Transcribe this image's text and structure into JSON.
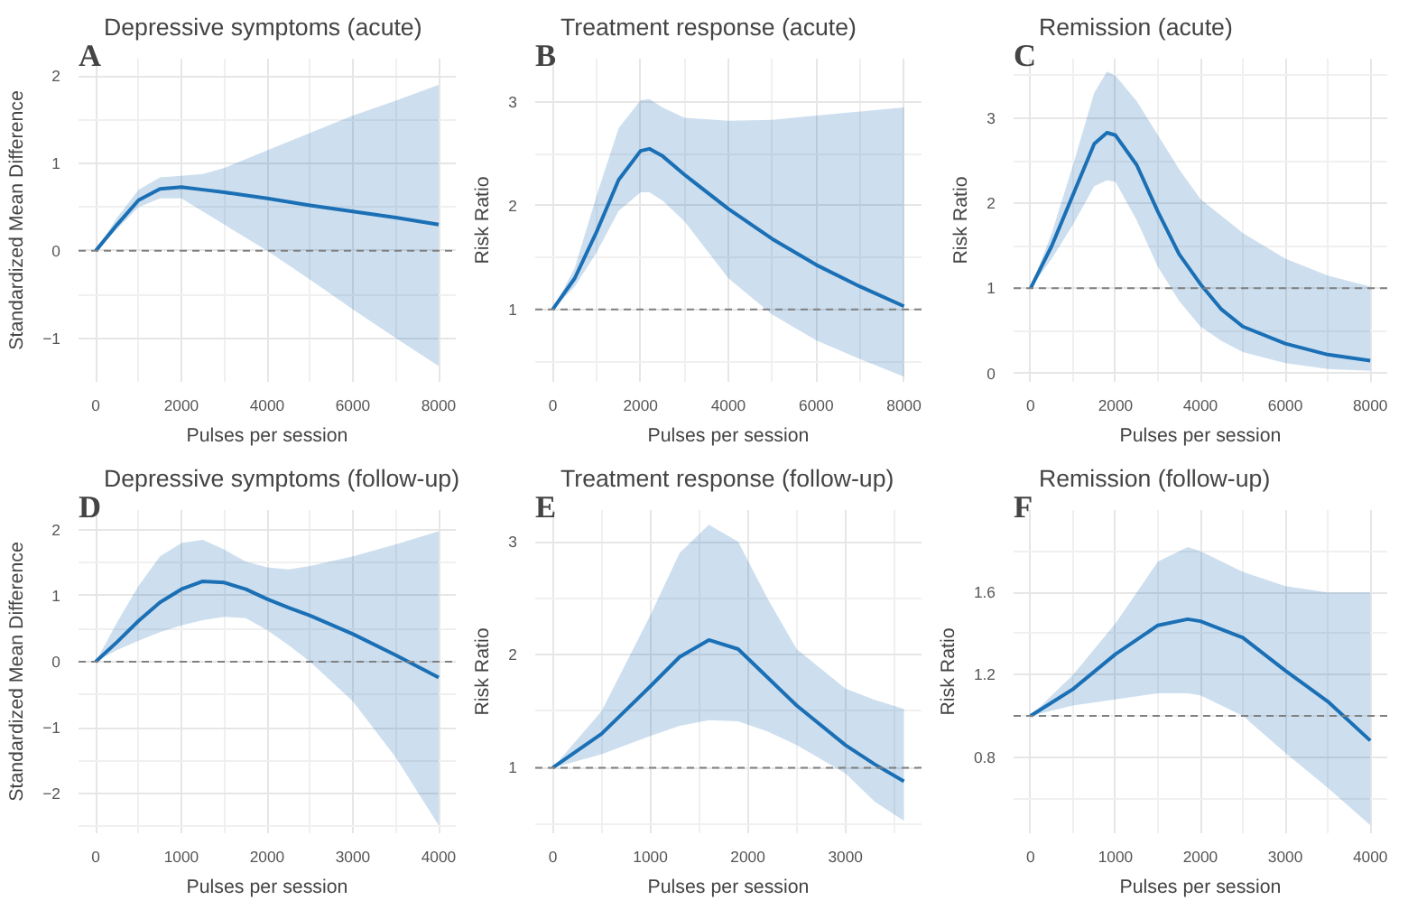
{
  "chart_data": [
    {
      "type": "line",
      "title": "Depressive symptoms (acute)",
      "annotations": [
        "A"
      ],
      "xlabel": "Pulses per session",
      "ylabel": "Standardized Mean Difference",
      "x": [
        0,
        500,
        1000,
        1500,
        2000,
        2500,
        3000,
        4000,
        5000,
        6000,
        7000,
        8000
      ],
      "xlim": [
        -400,
        8400
      ],
      "xticks": [
        0,
        2000,
        4000,
        6000,
        8000
      ],
      "ylim": [
        -1.5,
        2.2
      ],
      "yticks": [
        -1,
        0,
        1,
        2
      ],
      "grid": true,
      "marker": "none",
      "line_style": "solid",
      "ref_lines": [
        {
          "axis": "y",
          "value": 0,
          "color": "#808080",
          "line_style": "dashed"
        }
      ],
      "series": [
        {
          "color": "#1a6fb5",
          "values": [
            0,
            0.3,
            0.58,
            0.71,
            0.73,
            0.7,
            0.67,
            0.6,
            0.52,
            0.45,
            0.38,
            0.3
          ],
          "lower": [
            0,
            0.25,
            0.5,
            0.6,
            0.6,
            0.45,
            0.3,
            0,
            -0.33,
            -0.67,
            -1.0,
            -1.32
          ],
          "upper": [
            0,
            0.38,
            0.7,
            0.84,
            0.86,
            0.88,
            0.95,
            1.15,
            1.35,
            1.55,
            1.72,
            1.9
          ]
        }
      ]
    },
    {
      "type": "line",
      "title": "Treatment response (acute)",
      "annotations": [
        "B"
      ],
      "xlabel": "Pulses per session",
      "ylabel": "Risk Ratio",
      "x": [
        0,
        500,
        1000,
        1500,
        2000,
        2200,
        2500,
        3000,
        4000,
        5000,
        6000,
        7000,
        8000
      ],
      "xlim": [
        -400,
        8400
      ],
      "xticks": [
        0,
        2000,
        4000,
        6000,
        8000
      ],
      "ylim": [
        0.3,
        3.42
      ],
      "yticks": [
        1,
        2,
        3
      ],
      "grid": true,
      "marker": "none",
      "line_style": "solid",
      "ref_lines": [
        {
          "axis": "y",
          "value": 1,
          "color": "#808080",
          "line_style": "dashed"
        }
      ],
      "series": [
        {
          "color": "#1a6fb5",
          "values": [
            1,
            1.3,
            1.75,
            2.25,
            2.53,
            2.55,
            2.48,
            2.3,
            1.97,
            1.68,
            1.43,
            1.22,
            1.03
          ],
          "lower": [
            1,
            1.22,
            1.55,
            1.95,
            2.13,
            2.13,
            2.05,
            1.85,
            1.3,
            0.95,
            0.7,
            0.52,
            0.35
          ],
          "upper": [
            1,
            1.4,
            2.1,
            2.75,
            3.02,
            3.03,
            2.95,
            2.85,
            2.82,
            2.83,
            2.87,
            2.91,
            2.95
          ]
        }
      ]
    },
    {
      "type": "line",
      "title": "Remission (acute)",
      "annotations": [
        "C"
      ],
      "xlabel": "Pulses per session",
      "ylabel": "Risk Ratio",
      "x": [
        0,
        500,
        1000,
        1500,
        1800,
        2000,
        2500,
        3000,
        3500,
        4000,
        4500,
        5000,
        6000,
        7000,
        8000
      ],
      "xlim": [
        -400,
        8400
      ],
      "xticks": [
        0,
        2000,
        4000,
        6000,
        8000
      ],
      "ylim": [
        -0.1,
        3.7
      ],
      "yticks": [
        0,
        1,
        2,
        3
      ],
      "grid": true,
      "marker": "none",
      "line_style": "solid",
      "ref_lines": [
        {
          "axis": "y",
          "value": 1,
          "color": "#808080",
          "line_style": "dashed"
        }
      ],
      "series": [
        {
          "color": "#1a6fb5",
          "values": [
            1,
            1.5,
            2.1,
            2.7,
            2.83,
            2.8,
            2.45,
            1.9,
            1.4,
            1.05,
            0.75,
            0.55,
            0.35,
            0.22,
            0.15
          ],
          "lower": [
            1,
            1.35,
            1.75,
            2.2,
            2.27,
            2.25,
            1.8,
            1.25,
            0.85,
            0.55,
            0.38,
            0.25,
            0.12,
            0.05,
            0.03
          ],
          "upper": [
            1,
            1.65,
            2.45,
            3.3,
            3.55,
            3.5,
            3.2,
            2.8,
            2.4,
            2.05,
            1.85,
            1.65,
            1.35,
            1.15,
            1.02
          ]
        }
      ]
    },
    {
      "type": "line",
      "title": "Depressive symptoms (follow-up)",
      "annotations": [
        "D"
      ],
      "xlabel": "Pulses per session",
      "ylabel": "Standardized Mean Difference",
      "x": [
        0,
        250,
        500,
        750,
        1000,
        1250,
        1500,
        1750,
        2000,
        2250,
        2500,
        3000,
        3500,
        4000
      ],
      "xlim": [
        -200,
        4200
      ],
      "xticks": [
        0,
        1000,
        2000,
        3000,
        4000
      ],
      "ylim": [
        -2.6,
        2.3
      ],
      "yticks": [
        -2,
        -1,
        0,
        1,
        2
      ],
      "grid": true,
      "marker": "none",
      "line_style": "solid",
      "ref_lines": [
        {
          "axis": "y",
          "value": 0,
          "color": "#808080",
          "line_style": "dashed"
        }
      ],
      "series": [
        {
          "color": "#1a6fb5",
          "values": [
            0,
            0.3,
            0.62,
            0.9,
            1.1,
            1.22,
            1.2,
            1.1,
            0.95,
            0.82,
            0.7,
            0.42,
            0.1,
            -0.24
          ],
          "lower": [
            0,
            0.18,
            0.32,
            0.45,
            0.55,
            0.63,
            0.68,
            0.66,
            0.48,
            0.25,
            0,
            -0.6,
            -1.45,
            -2.48
          ],
          "upper": [
            0,
            0.6,
            1.15,
            1.6,
            1.8,
            1.85,
            1.7,
            1.52,
            1.43,
            1.4,
            1.45,
            1.6,
            1.78,
            1.98
          ]
        }
      ]
    },
    {
      "type": "line",
      "title": "Treatment response (follow-up)",
      "annotations": [
        "E"
      ],
      "xlabel": "Pulses per session",
      "ylabel": "Risk Ratio",
      "x": [
        0,
        500,
        1000,
        1300,
        1600,
        1900,
        2200,
        2500,
        3000,
        3300,
        3600
      ],
      "xlim": [
        -180,
        3780
      ],
      "xticks": [
        0,
        1000,
        2000,
        3000
      ],
      "ylim": [
        0.42,
        3.28
      ],
      "yticks": [
        1,
        2,
        3
      ],
      "grid": true,
      "marker": "none",
      "line_style": "solid",
      "ref_lines": [
        {
          "axis": "y",
          "value": 1,
          "color": "#808080",
          "line_style": "dashed"
        }
      ],
      "series": [
        {
          "color": "#1a6fb5",
          "values": [
            1,
            1.3,
            1.72,
            1.98,
            2.13,
            2.05,
            1.8,
            1.55,
            1.2,
            1.03,
            0.88
          ],
          "lower": [
            1,
            1.12,
            1.28,
            1.37,
            1.42,
            1.41,
            1.32,
            1.2,
            0.95,
            0.7,
            0.53
          ],
          "upper": [
            1,
            1.5,
            2.35,
            2.9,
            3.15,
            3.0,
            2.5,
            2.05,
            1.7,
            1.6,
            1.52
          ]
        }
      ]
    },
    {
      "type": "line",
      "title": "Remission (follow-up)",
      "annotations": [
        "F"
      ],
      "xlabel": "Pulses per session",
      "ylabel": "Risk Ratio",
      "x": [
        0,
        500,
        1000,
        1500,
        1850,
        2000,
        2500,
        3000,
        3500,
        4000
      ],
      "xlim": [
        -200,
        4200
      ],
      "xticks": [
        0,
        1000,
        2000,
        3000,
        4000
      ],
      "ylim": [
        0.43,
        2.0
      ],
      "yticks": [
        0.8,
        1.2,
        1.6
      ],
      "grid": true,
      "marker": "none",
      "line_style": "solid",
      "ref_lines": [
        {
          "axis": "y",
          "value": 1,
          "color": "#808080",
          "line_style": "dashed"
        }
      ],
      "series": [
        {
          "color": "#1a6fb5",
          "values": [
            1,
            1.13,
            1.3,
            1.44,
            1.47,
            1.46,
            1.38,
            1.22,
            1.07,
            0.88
          ],
          "lower": [
            1,
            1.05,
            1.08,
            1.11,
            1.11,
            1.1,
            1.0,
            0.82,
            0.65,
            0.47
          ],
          "upper": [
            1,
            1.2,
            1.45,
            1.75,
            1.82,
            1.8,
            1.7,
            1.63,
            1.6,
            1.6
          ]
        }
      ]
    }
  ]
}
